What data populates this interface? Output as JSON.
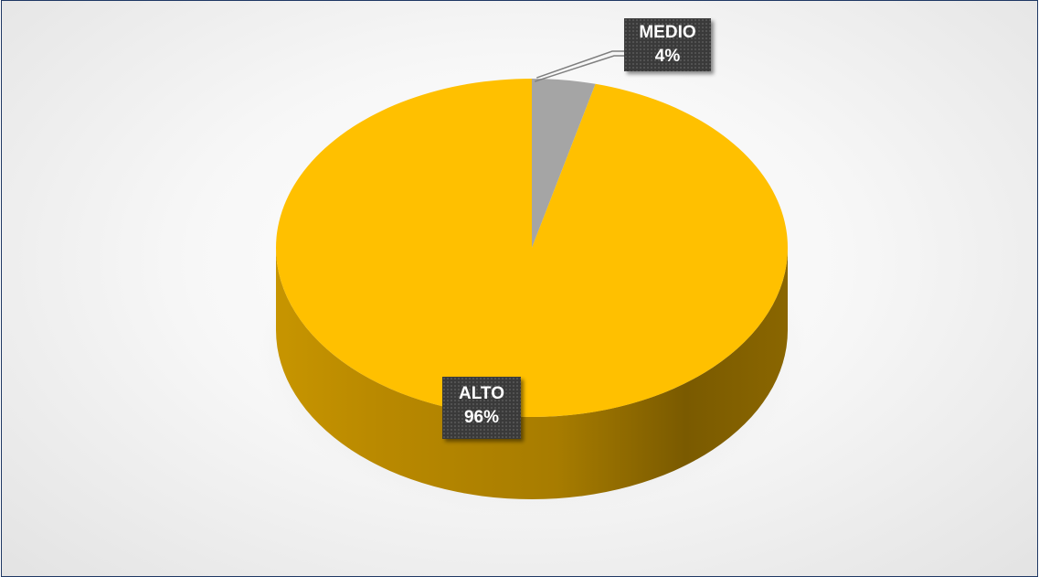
{
  "chart_data": {
    "type": "pie",
    "style": "3d",
    "categories": [
      "ALTO",
      "MEDIO"
    ],
    "values": [
      96,
      4
    ],
    "value_labels": [
      "96%",
      "4%"
    ],
    "colors": [
      "#ffc000",
      "#a5a5a5"
    ],
    "title": "",
    "legend": "none"
  }
}
